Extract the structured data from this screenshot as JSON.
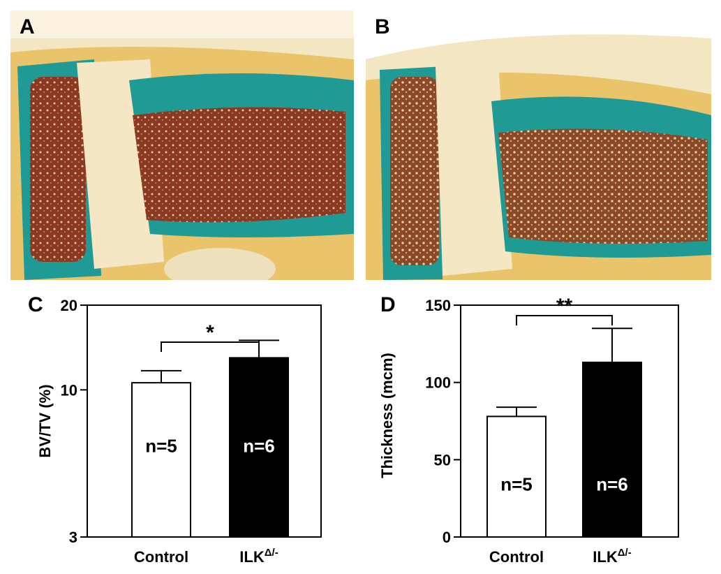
{
  "panels": {
    "a": {
      "letter": "A"
    },
    "b": {
      "letter": "B"
    },
    "c": {
      "letter": "C"
    },
    "d": {
      "letter": "D"
    }
  },
  "colors": {
    "bone_teal": "#1f9a95",
    "marrow_brown": "#8a3a22",
    "cartilage_yellow": "#e9c46a",
    "tissue_cream": "#f3e6c2",
    "control_bar": "#ffffff",
    "ilk_bar": "#000000"
  },
  "chart_data": [
    {
      "type": "bar",
      "panel": "C",
      "ylabel": "BV/TV (%)",
      "yscale": "log",
      "ylim": [
        3,
        20
      ],
      "yticks": [
        3,
        10,
        20
      ],
      "categories": [
        "Control",
        "ILK"
      ],
      "category_superscripts": [
        "",
        "Δ/-"
      ],
      "values": [
        10.6,
        13.0
      ],
      "errors": [
        1.1,
        2.0
      ],
      "bar_colors": [
        "#ffffff",
        "#000000"
      ],
      "bar_labels": [
        "n=5",
        "n=6"
      ],
      "significance": "*"
    },
    {
      "type": "bar",
      "panel": "D",
      "ylabel": "Thickness (mcm)",
      "yscale": "linear",
      "ylim": [
        0,
        150
      ],
      "yticks": [
        0,
        50,
        100,
        150
      ],
      "categories": [
        "Control",
        "ILK"
      ],
      "category_superscripts": [
        "",
        "Δ/-"
      ],
      "values": [
        78,
        113
      ],
      "errors": [
        6,
        22
      ],
      "bar_colors": [
        "#ffffff",
        "#000000"
      ],
      "bar_labels": [
        "n=5",
        "n=6"
      ],
      "significance": "**"
    }
  ]
}
